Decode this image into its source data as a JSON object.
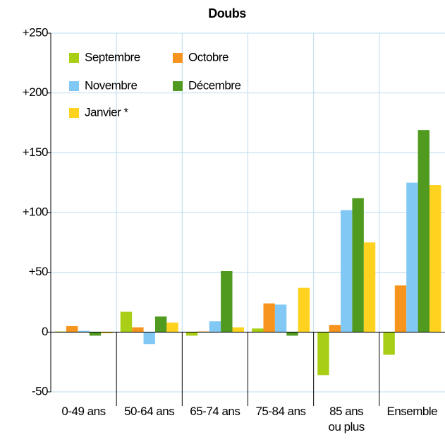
{
  "chart_data": {
    "type": "bar",
    "title": "Doubs",
    "categories": [
      "0-49 ans",
      "50-64 ans",
      "65-74 ans",
      "75-84 ans",
      "85 ans\nou plus",
      "Ensemble"
    ],
    "series": [
      {
        "name": "Septembre",
        "color": "#a8cf16",
        "values": [
          0.5,
          17,
          -3,
          3,
          -36,
          -19
        ]
      },
      {
        "name": "Octobre",
        "color": "#f7941d",
        "values": [
          5,
          4,
          0.5,
          24,
          6,
          39
        ]
      },
      {
        "name": "Novembre",
        "color": "#82c8f5",
        "values": [
          1,
          -10,
          9,
          23,
          102,
          125
        ]
      },
      {
        "name": "Décembre",
        "color": "#4f9a1f",
        "values": [
          -3,
          13,
          51,
          -3,
          112,
          169
        ]
      },
      {
        "name": "Janvier *",
        "color": "#ffd21f",
        "values": [
          -1,
          8,
          4,
          37,
          75,
          123
        ]
      }
    ],
    "ylim": [
      -50,
      250
    ],
    "yticks": [
      -50,
      0,
      {
        "value": 50,
        "label": "+50"
      },
      {
        "value": 100,
        "label": "+100"
      },
      {
        "value": 150,
        "label": "+150"
      },
      {
        "value": 200,
        "label": "+200"
      },
      {
        "value": 250,
        "label": "+250"
      }
    ],
    "grid": true,
    "legend": "top-left"
  }
}
